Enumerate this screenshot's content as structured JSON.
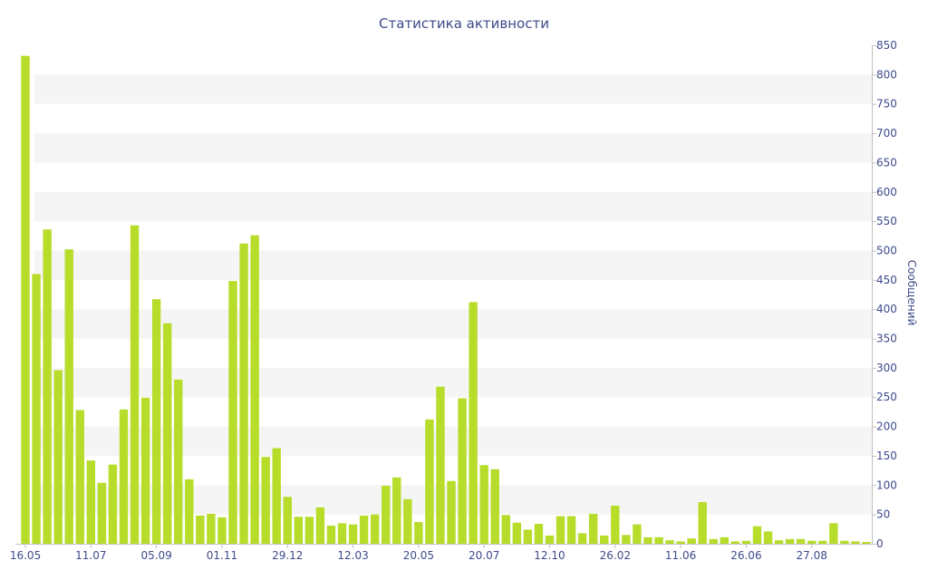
{
  "chart_data": {
    "type": "bar",
    "title": "Статистика активности",
    "ylabel": "Сообщений",
    "ylim": [
      0,
      850
    ],
    "ytick_step": 50,
    "grid": "alternating horizontal bands",
    "y_axis_position": "right",
    "bar_color": "#b7dd2a",
    "text_color": "#3e4a8a",
    "band_color": "#f5f5f5",
    "x_tick_labels": [
      {
        "label": "16.05",
        "index": 0
      },
      {
        "label": "11.07",
        "index": 6
      },
      {
        "label": "05.09",
        "index": 12
      },
      {
        "label": "01.11",
        "index": 18
      },
      {
        "label": "29.12",
        "index": 24
      },
      {
        "label": "12.03",
        "index": 30
      },
      {
        "label": "20.05",
        "index": 36
      },
      {
        "label": "20.07",
        "index": 42
      },
      {
        "label": "12.10",
        "index": 48
      },
      {
        "label": "26.02",
        "index": 54
      },
      {
        "label": "11.06",
        "index": 60
      },
      {
        "label": "26.06",
        "index": 66
      },
      {
        "label": "27.08",
        "index": 72
      }
    ],
    "values": [
      832,
      460,
      536,
      296,
      502,
      228,
      142,
      104,
      135,
      229,
      543,
      249,
      417,
      376,
      280,
      110,
      48,
      51,
      45,
      448,
      512,
      526,
      148,
      163,
      80,
      46,
      46,
      62,
      31,
      35,
      33,
      48,
      50,
      99,
      113,
      76,
      37,
      212,
      268,
      107,
      248,
      412,
      134,
      127,
      49,
      36,
      24,
      34,
      14,
      47,
      47,
      18,
      51,
      14,
      65,
      15,
      33,
      11,
      11,
      6,
      4,
      9,
      71,
      8,
      11,
      4,
      5,
      30,
      21,
      6,
      8,
      8,
      5,
      5,
      35,
      5,
      4,
      3
    ]
  }
}
